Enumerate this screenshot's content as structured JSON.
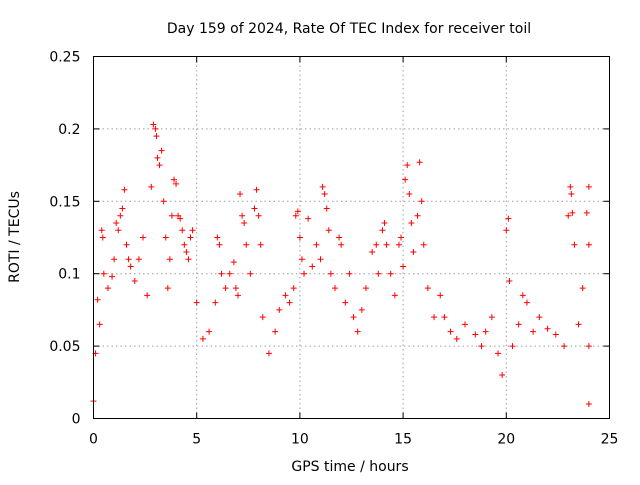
{
  "chart_data": {
    "type": "scatter",
    "title": "Day 159 of 2024, Rate Of TEC Index for receiver toil",
    "xlabel": "GPS time / hours",
    "ylabel": "ROTI / TECUs",
    "xlim": [
      0,
      25
    ],
    "ylim": [
      0,
      0.25
    ],
    "x_ticks": [
      "0",
      "5",
      "10",
      "15",
      "20",
      "25"
    ],
    "y_ticks": [
      "0",
      "0.05",
      "0.1",
      "0.15",
      "0.2",
      "0.25"
    ],
    "x_tick_values": [
      0,
      5,
      10,
      15,
      20,
      25
    ],
    "y_tick_values": [
      0,
      0.05,
      0.1,
      0.15,
      0.2,
      0.25
    ],
    "grid": true,
    "marker": "+",
    "marker_color": "#ff0000",
    "series": [
      {
        "points": [
          [
            0.0,
            0.012
          ],
          [
            0.1,
            0.045
          ],
          [
            0.2,
            0.082
          ],
          [
            0.3,
            0.065
          ],
          [
            0.4,
            0.13
          ],
          [
            0.45,
            0.125
          ],
          [
            0.5,
            0.1
          ],
          [
            0.7,
            0.09
          ],
          [
            0.9,
            0.098
          ],
          [
            1.0,
            0.11
          ],
          [
            1.1,
            0.135
          ],
          [
            1.2,
            0.13
          ],
          [
            1.3,
            0.14
          ],
          [
            1.4,
            0.145
          ],
          [
            1.5,
            0.158
          ],
          [
            1.6,
            0.12
          ],
          [
            1.7,
            0.11
          ],
          [
            1.8,
            0.105
          ],
          [
            2.0,
            0.095
          ],
          [
            2.2,
            0.11
          ],
          [
            2.4,
            0.125
          ],
          [
            2.6,
            0.085
          ],
          [
            2.8,
            0.16
          ],
          [
            2.9,
            0.203
          ],
          [
            3.0,
            0.2
          ],
          [
            3.05,
            0.195
          ],
          [
            3.1,
            0.18
          ],
          [
            3.2,
            0.175
          ],
          [
            3.3,
            0.185
          ],
          [
            3.4,
            0.15
          ],
          [
            3.5,
            0.125
          ],
          [
            3.6,
            0.09
          ],
          [
            3.7,
            0.11
          ],
          [
            3.8,
            0.14
          ],
          [
            3.9,
            0.165
          ],
          [
            4.0,
            0.162
          ],
          [
            4.1,
            0.14
          ],
          [
            4.2,
            0.138
          ],
          [
            4.3,
            0.13
          ],
          [
            4.4,
            0.12
          ],
          [
            4.5,
            0.115
          ],
          [
            4.6,
            0.11
          ],
          [
            4.7,
            0.125
          ],
          [
            4.8,
            0.13
          ],
          [
            5.0,
            0.08
          ],
          [
            5.3,
            0.055
          ],
          [
            5.6,
            0.06
          ],
          [
            5.9,
            0.08
          ],
          [
            6.0,
            0.125
          ],
          [
            6.1,
            0.12
          ],
          [
            6.2,
            0.1
          ],
          [
            6.4,
            0.09
          ],
          [
            6.6,
            0.1
          ],
          [
            6.8,
            0.108
          ],
          [
            6.9,
            0.09
          ],
          [
            7.0,
            0.085
          ],
          [
            7.1,
            0.155
          ],
          [
            7.2,
            0.14
          ],
          [
            7.3,
            0.135
          ],
          [
            7.4,
            0.12
          ],
          [
            7.6,
            0.1
          ],
          [
            7.8,
            0.145
          ],
          [
            7.9,
            0.158
          ],
          [
            8.0,
            0.14
          ],
          [
            8.1,
            0.12
          ],
          [
            8.2,
            0.07
          ],
          [
            8.5,
            0.045
          ],
          [
            8.8,
            0.06
          ],
          [
            9.0,
            0.075
          ],
          [
            9.3,
            0.085
          ],
          [
            9.5,
            0.08
          ],
          [
            9.7,
            0.09
          ],
          [
            9.8,
            0.14
          ],
          [
            9.9,
            0.143
          ],
          [
            10.0,
            0.125
          ],
          [
            10.1,
            0.11
          ],
          [
            10.2,
            0.1
          ],
          [
            10.4,
            0.138
          ],
          [
            10.6,
            0.105
          ],
          [
            10.8,
            0.12
          ],
          [
            11.0,
            0.11
          ],
          [
            11.1,
            0.16
          ],
          [
            11.2,
            0.155
          ],
          [
            11.3,
            0.145
          ],
          [
            11.4,
            0.13
          ],
          [
            11.5,
            0.1
          ],
          [
            11.7,
            0.09
          ],
          [
            11.9,
            0.125
          ],
          [
            12.0,
            0.12
          ],
          [
            12.2,
            0.08
          ],
          [
            12.4,
            0.1
          ],
          [
            12.6,
            0.07
          ],
          [
            12.8,
            0.06
          ],
          [
            13.0,
            0.075
          ],
          [
            13.2,
            0.09
          ],
          [
            13.5,
            0.115
          ],
          [
            13.7,
            0.12
          ],
          [
            13.8,
            0.1
          ],
          [
            14.0,
            0.13
          ],
          [
            14.1,
            0.135
          ],
          [
            14.2,
            0.12
          ],
          [
            14.4,
            0.1
          ],
          [
            14.6,
            0.085
          ],
          [
            14.8,
            0.12
          ],
          [
            14.9,
            0.125
          ],
          [
            15.0,
            0.105
          ],
          [
            15.1,
            0.165
          ],
          [
            15.2,
            0.175
          ],
          [
            15.3,
            0.155
          ],
          [
            15.4,
            0.135
          ],
          [
            15.5,
            0.115
          ],
          [
            15.7,
            0.14
          ],
          [
            15.8,
            0.177
          ],
          [
            15.9,
            0.15
          ],
          [
            16.0,
            0.12
          ],
          [
            16.2,
            0.09
          ],
          [
            16.5,
            0.07
          ],
          [
            16.8,
            0.085
          ],
          [
            17.0,
            0.07
          ],
          [
            17.3,
            0.06
          ],
          [
            17.6,
            0.055
          ],
          [
            18.0,
            0.065
          ],
          [
            18.5,
            0.058
          ],
          [
            18.8,
            0.05
          ],
          [
            19.0,
            0.06
          ],
          [
            19.3,
            0.07
          ],
          [
            19.6,
            0.045
          ],
          [
            19.8,
            0.03
          ],
          [
            20.0,
            0.13
          ],
          [
            20.1,
            0.138
          ],
          [
            20.15,
            0.095
          ],
          [
            20.3,
            0.05
          ],
          [
            20.6,
            0.065
          ],
          [
            20.8,
            0.085
          ],
          [
            21.0,
            0.08
          ],
          [
            21.3,
            0.06
          ],
          [
            21.6,
            0.07
          ],
          [
            22.0,
            0.062
          ],
          [
            22.4,
            0.058
          ],
          [
            22.8,
            0.05
          ],
          [
            23.0,
            0.14
          ],
          [
            23.1,
            0.16
          ],
          [
            23.15,
            0.155
          ],
          [
            23.2,
            0.142
          ],
          [
            23.3,
            0.12
          ],
          [
            23.5,
            0.065
          ],
          [
            23.7,
            0.09
          ],
          [
            23.9,
            0.142
          ],
          [
            24.0,
            0.16
          ],
          [
            24.0,
            0.12
          ],
          [
            24.0,
            0.05
          ],
          [
            24.0,
            0.01
          ]
        ]
      }
    ]
  }
}
